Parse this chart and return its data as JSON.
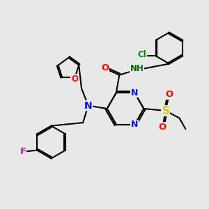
{
  "bg_color": "#e8e8e8",
  "bond_color": "#000000",
  "bond_width": 1.5,
  "atom_colors": {
    "N": "#0000ff",
    "O": "#ff0000",
    "S": "#cccc00",
    "F": "#cc00cc",
    "Cl": "#008800",
    "NH": "#006600",
    "C": "#000000"
  },
  "font_size": 8.5,
  "figsize": [
    3.0,
    3.0
  ],
  "dpi": 100
}
